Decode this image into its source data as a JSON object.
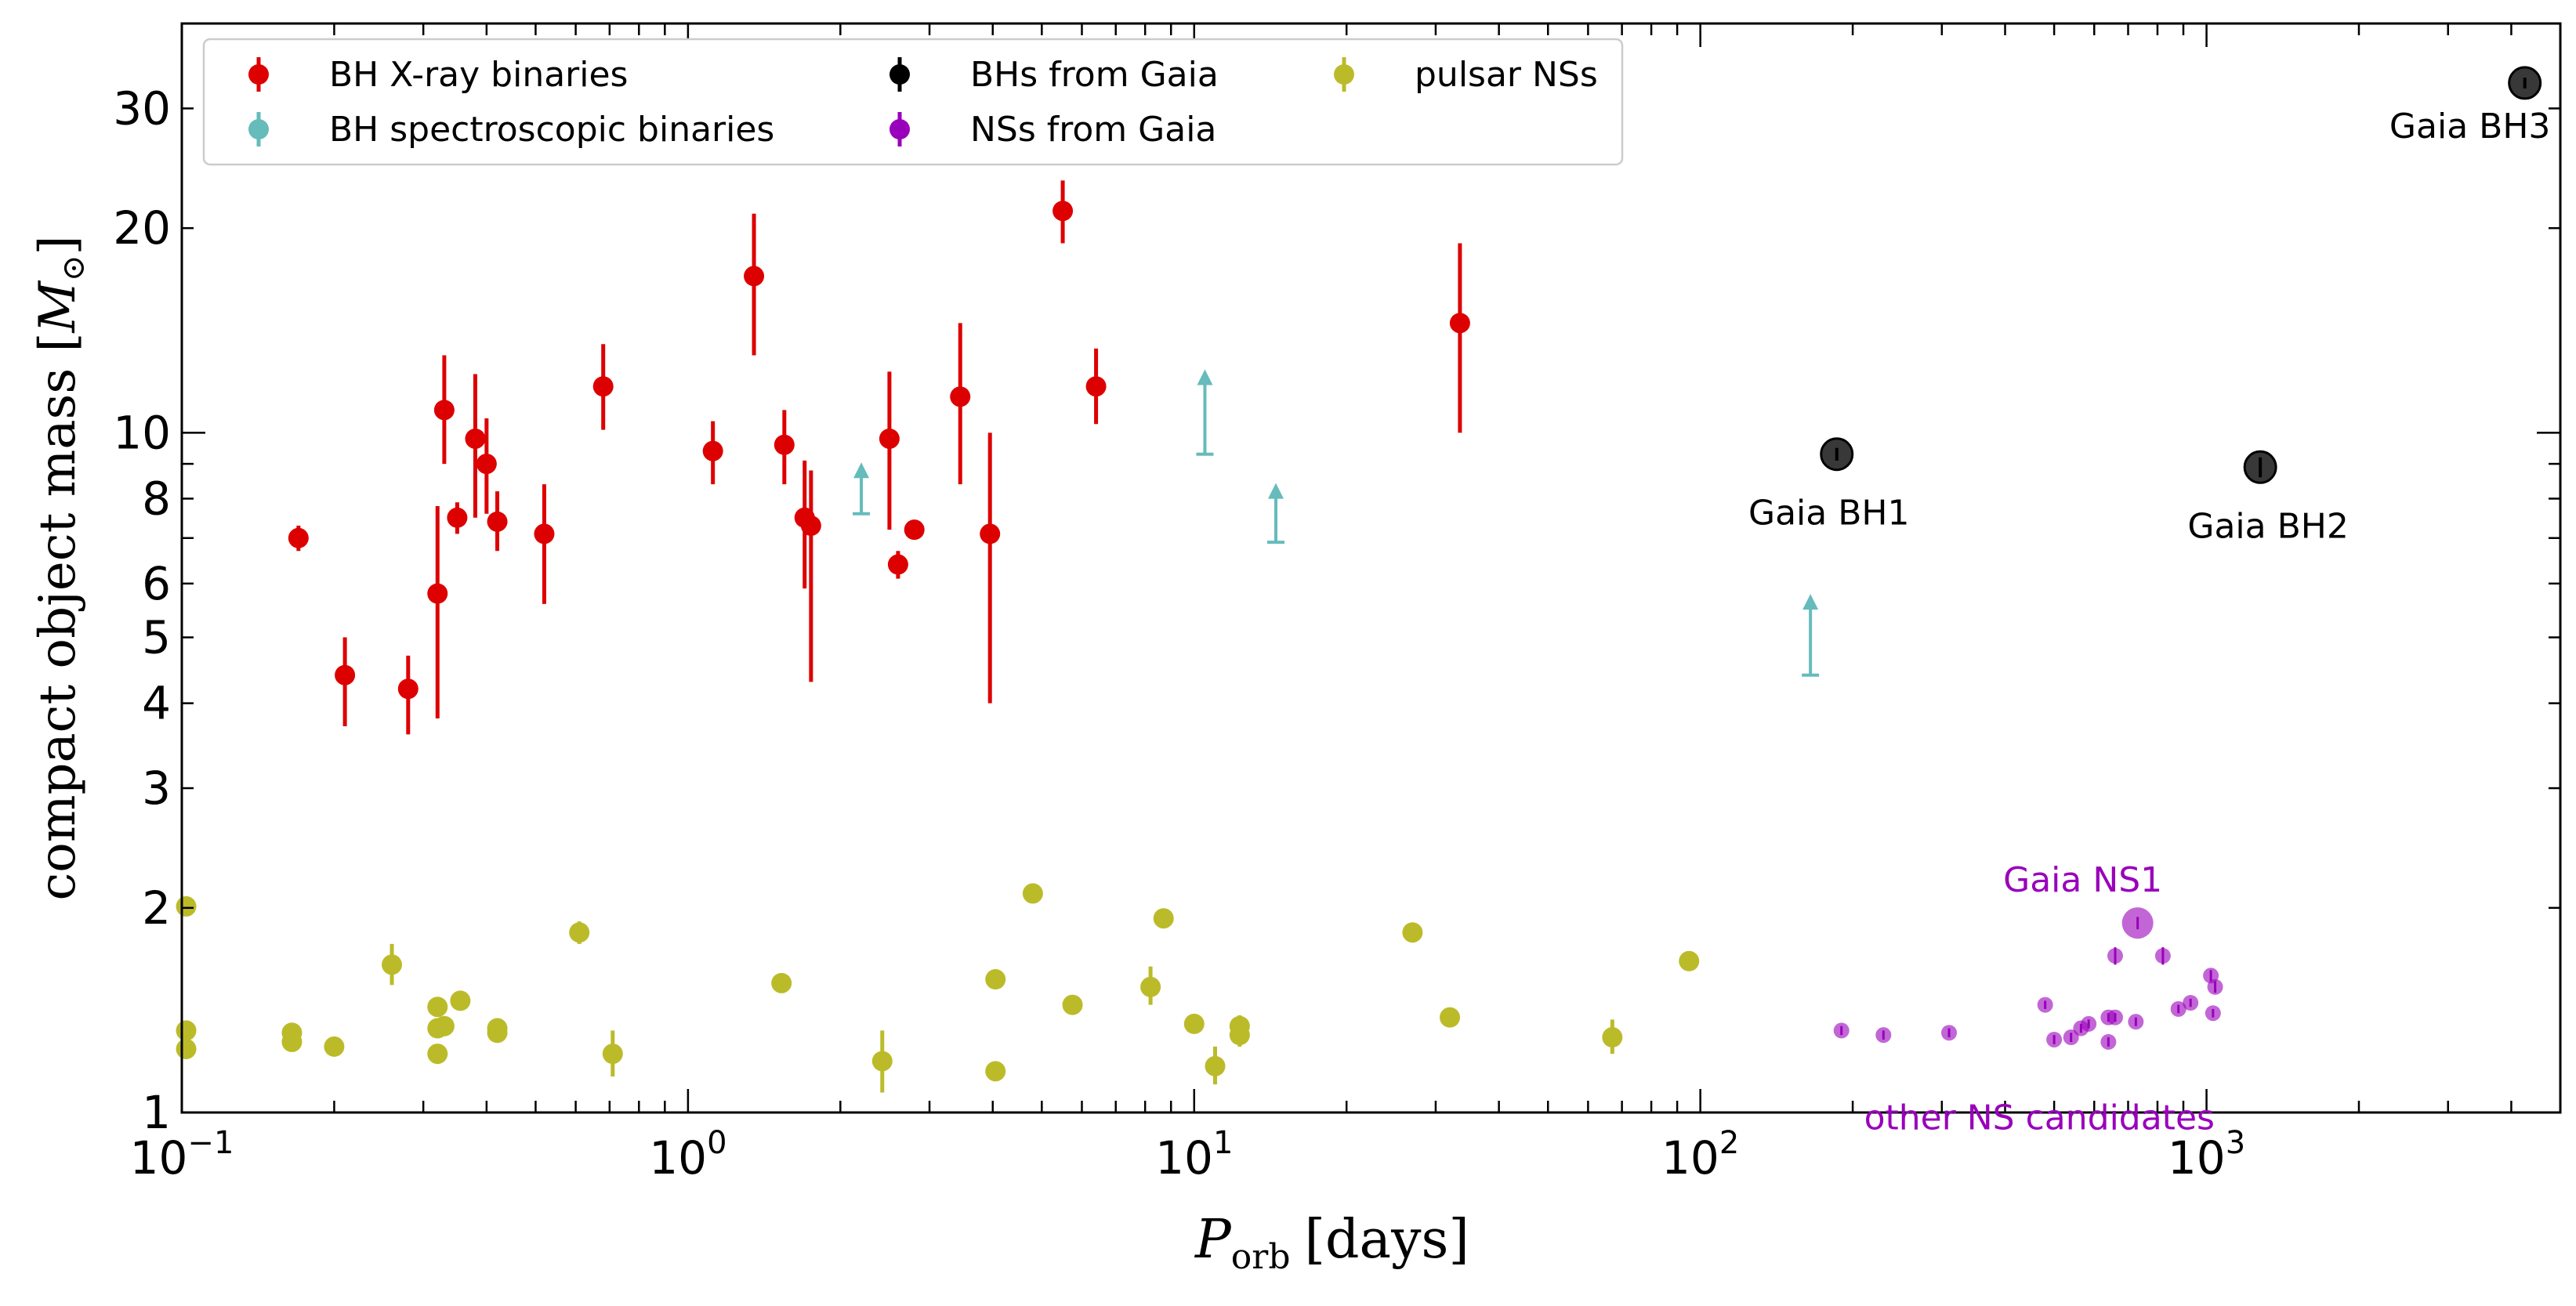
{
  "chart_data": {
    "type": "scatter",
    "xlabel_main": "P",
    "xlabel_sub": "orb",
    "xlabel_unit": "[days]",
    "ylabel_text": "compact object mass [",
    "ylabel_unit": "M",
    "ylabel_sun": "⊙",
    "ylabel_close": "]",
    "xscale": "log",
    "yscale": "log",
    "xlim": [
      0.1,
      5000
    ],
    "ylim": [
      1,
      40
    ],
    "x_ticks": [
      {
        "value": 0.1,
        "base": "10",
        "exp": "−1"
      },
      {
        "value": 1,
        "base": "10",
        "exp": "0"
      },
      {
        "value": 10,
        "base": "10",
        "exp": "1"
      },
      {
        "value": 100,
        "base": "10",
        "exp": "2"
      },
      {
        "value": 1000,
        "base": "10",
        "exp": "3"
      }
    ],
    "y_ticks": [
      {
        "value": 1,
        "label": "1"
      },
      {
        "value": 2,
        "label": "2"
      },
      {
        "value": 3,
        "label": "3"
      },
      {
        "value": 4,
        "label": "4"
      },
      {
        "value": 5,
        "label": "5"
      },
      {
        "value": 6,
        "label": "6"
      },
      {
        "value": 8,
        "label": "8"
      },
      {
        "value": 10,
        "label": "10"
      },
      {
        "value": 20,
        "label": "20"
      },
      {
        "value": 30,
        "label": "30"
      }
    ],
    "grid": false,
    "legend_position": "top-left",
    "legend": [
      {
        "label": "BH X-ray binaries",
        "color": "#dd0000"
      },
      {
        "label": "BH spectroscopic binaries",
        "color": "#66bbbb"
      },
      {
        "label": "BHs from Gaia",
        "color": "#000000"
      },
      {
        "label": "NSs from Gaia",
        "color": "#9900bb"
      },
      {
        "label": "pulsar NSs",
        "color": "#bbbb2a"
      }
    ],
    "series": [
      {
        "name": "BH X-ray binaries",
        "color": "#dd0000",
        "points": [
          [
            0.17,
            7.0,
            6.7,
            7.3
          ],
          [
            0.21,
            4.4,
            3.7,
            5.0
          ],
          [
            0.28,
            4.2,
            3.6,
            4.7
          ],
          [
            0.32,
            5.8,
            3.8,
            7.8
          ],
          [
            0.33,
            10.8,
            9.0,
            13.0
          ],
          [
            0.35,
            7.5,
            7.1,
            7.9
          ],
          [
            0.38,
            9.8,
            7.5,
            12.2
          ],
          [
            0.4,
            9.0,
            7.6,
            10.5
          ],
          [
            0.42,
            7.4,
            6.7,
            8.2
          ],
          [
            0.52,
            7.1,
            5.6,
            8.4
          ],
          [
            0.68,
            11.7,
            10.1,
            13.5
          ],
          [
            1.12,
            9.4,
            8.4,
            10.4
          ],
          [
            1.35,
            17.0,
            13.0,
            21.0
          ],
          [
            1.55,
            9.6,
            8.4,
            10.8
          ],
          [
            1.7,
            7.5,
            5.9,
            9.1
          ],
          [
            1.75,
            7.3,
            4.3,
            8.8
          ],
          [
            2.5,
            9.8,
            7.2,
            12.3
          ],
          [
            2.6,
            6.4,
            6.1,
            6.7
          ],
          [
            2.8,
            7.2,
            7.0,
            7.4
          ],
          [
            3.45,
            11.3,
            8.4,
            14.5
          ],
          [
            3.95,
            7.1,
            4.0,
            10.0
          ],
          [
            5.5,
            21.2,
            19.0,
            23.5
          ],
          [
            6.4,
            11.7,
            10.3,
            13.3
          ],
          [
            33.5,
            14.5,
            10.0,
            19.0
          ]
        ]
      },
      {
        "name": "BH spectroscopic binaries",
        "color": "#66bbbb",
        "lower_limits": [
          [
            2.2,
            7.6,
            8.9
          ],
          [
            10.5,
            9.3,
            12.2
          ],
          [
            14.5,
            6.9,
            8.3
          ],
          [
            165,
            4.4,
            5.7
          ]
        ]
      },
      {
        "name": "BHs from Gaia",
        "color": "#000000",
        "points": [
          [
            186,
            9.3,
            9.1,
            9.5
          ],
          [
            1277,
            8.9,
            8.6,
            9.2
          ],
          [
            4254,
            32.7,
            32.1,
            33.3
          ]
        ]
      },
      {
        "name": "NSs from Gaia",
        "color": "#9900bb",
        "points": [
          [
            731,
            1.9,
            1.86,
            1.94
          ],
          [
            190,
            1.32,
            1.3,
            1.34
          ],
          [
            230,
            1.3,
            1.28,
            1.32
          ],
          [
            310,
            1.31,
            1.29,
            1.33
          ],
          [
            480,
            1.44,
            1.42,
            1.46
          ],
          [
            500,
            1.28,
            1.26,
            1.3
          ],
          [
            540,
            1.29,
            1.27,
            1.31
          ],
          [
            565,
            1.33,
            1.31,
            1.35
          ],
          [
            585,
            1.35,
            1.33,
            1.37
          ],
          [
            640,
            1.38,
            1.36,
            1.4
          ],
          [
            660,
            1.38,
            1.36,
            1.4
          ],
          [
            640,
            1.27,
            1.25,
            1.29
          ],
          [
            660,
            1.7,
            1.65,
            1.75
          ],
          [
            725,
            1.36,
            1.34,
            1.38
          ],
          [
            820,
            1.7,
            1.65,
            1.75
          ],
          [
            880,
            1.42,
            1.4,
            1.44
          ],
          [
            930,
            1.45,
            1.43,
            1.47
          ],
          [
            1020,
            1.59,
            1.56,
            1.62
          ],
          [
            1040,
            1.53,
            1.5,
            1.56
          ],
          [
            1030,
            1.4,
            1.38,
            1.42
          ]
        ]
      },
      {
        "name": "pulsar NSs",
        "color": "#bbbb2a",
        "points": [
          [
            0.102,
            2.01,
            1.97,
            2.05
          ],
          [
            0.102,
            1.32,
            1.3,
            1.34
          ],
          [
            0.102,
            1.24,
            1.22,
            1.26
          ],
          [
            0.165,
            1.31,
            1.29,
            1.33
          ],
          [
            0.165,
            1.27,
            1.25,
            1.29
          ],
          [
            0.2,
            1.25,
            1.23,
            1.27
          ],
          [
            0.26,
            1.65,
            1.54,
            1.77
          ],
          [
            0.32,
            1.33,
            1.3,
            1.36
          ],
          [
            0.32,
            1.43,
            1.4,
            1.46
          ],
          [
            0.33,
            1.34,
            1.31,
            1.37
          ],
          [
            0.32,
            1.22,
            1.2,
            1.24
          ],
          [
            0.355,
            1.46,
            1.44,
            1.48
          ],
          [
            0.42,
            1.33,
            1.31,
            1.35
          ],
          [
            0.42,
            1.31,
            1.29,
            1.33
          ],
          [
            0.61,
            1.84,
            1.77,
            1.91
          ],
          [
            0.71,
            1.22,
            1.13,
            1.32
          ],
          [
            1.53,
            1.55,
            1.53,
            1.57
          ],
          [
            2.42,
            1.19,
            1.07,
            1.32
          ],
          [
            4.05,
            1.57,
            1.55,
            1.59
          ],
          [
            4.05,
            1.15,
            1.13,
            1.17
          ],
          [
            4.8,
            2.1,
            2.07,
            2.13
          ],
          [
            5.75,
            1.44,
            1.4,
            1.48
          ],
          [
            8.2,
            1.53,
            1.44,
            1.64
          ],
          [
            8.7,
            1.93,
            1.9,
            1.96
          ],
          [
            10.0,
            1.35,
            1.33,
            1.37
          ],
          [
            11.0,
            1.17,
            1.1,
            1.25
          ],
          [
            12.3,
            1.34,
            1.29,
            1.39
          ],
          [
            12.3,
            1.3,
            1.25,
            1.35
          ],
          [
            27.0,
            1.84,
            1.81,
            1.87
          ],
          [
            32.0,
            1.38,
            1.36,
            1.4
          ],
          [
            67.0,
            1.29,
            1.22,
            1.37
          ],
          [
            95.0,
            1.67,
            1.64,
            1.7
          ]
        ]
      }
    ],
    "annotations": [
      {
        "text": "Gaia BH1",
        "x": 186,
        "y": 9.3,
        "color": "#000000"
      },
      {
        "text": "Gaia BH2",
        "x": 1277,
        "y": 8.9,
        "color": "#000000"
      },
      {
        "text": "Gaia BH3",
        "x": 4254,
        "y": 32.7,
        "color": "#000000"
      },
      {
        "text": "Gaia NS1",
        "x": 731,
        "y": 1.9,
        "color": "#9900bb"
      },
      {
        "text": "other NS candidates",
        "x": 600,
        "y": 1.2,
        "color": "#9900bb"
      }
    ]
  }
}
